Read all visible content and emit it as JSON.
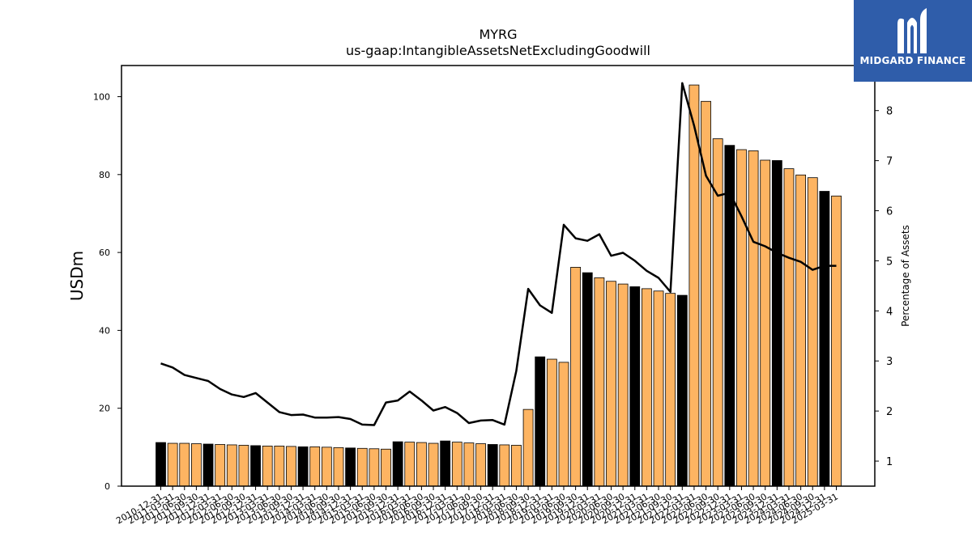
{
  "brand": {
    "name": "MIDGARD FINANCE",
    "bg_color": "#2f5daa",
    "icon": "midgard-logo-icon"
  },
  "chart_data": {
    "type": "bar",
    "title": "MYRG",
    "subtitle": "us-gaap:IntangibleAssetsNetExcludingGoodwill",
    "ylabel": "USDm",
    "y2label": "Percentage of Assets",
    "ylim": [
      0,
      108
    ],
    "y2lim": [
      0.5,
      8.9
    ],
    "yticks": [
      0,
      20,
      40,
      60,
      80,
      100
    ],
    "y2ticks": [
      1,
      2,
      3,
      4,
      5,
      6,
      7,
      8
    ],
    "colors": {
      "annual_bar": "#000000",
      "quarter_bar": "#fdb462",
      "line": "#000000"
    },
    "categories": [
      "2010-12-31",
      "2011-03-31",
      "2011-06-30",
      "2011-09-30",
      "2011-12-31",
      "2012-03-31",
      "2012-06-30",
      "2012-09-30",
      "2012-12-31",
      "2013-03-31",
      "2013-06-30",
      "2013-09-30",
      "2013-12-31",
      "2014-03-31",
      "2014-06-30",
      "2014-09-30",
      "2014-12-31",
      "2015-03-31",
      "2015-06-30",
      "2015-09-30",
      "2015-12-31",
      "2016-03-31",
      "2016-06-30",
      "2016-09-30",
      "2016-12-31",
      "2017-03-31",
      "2017-06-30",
      "2017-09-30",
      "2017-12-31",
      "2018-03-31",
      "2018-06-30",
      "2018-09-30",
      "2018-12-31",
      "2019-03-31",
      "2019-06-30",
      "2019-09-30",
      "2019-12-31",
      "2020-03-31",
      "2020-06-30",
      "2020-09-30",
      "2020-12-31",
      "2021-03-31",
      "2021-06-30",
      "2021-09-30",
      "2021-12-31",
      "2022-03-31",
      "2022-06-30",
      "2022-09-30",
      "2022-12-31",
      "2023-03-31",
      "2023-06-30",
      "2023-09-30",
      "2023-12-31",
      "2024-03-31",
      "2024-06-30",
      "2024-09-30",
      "2024-12-31",
      "2025-03-31"
    ],
    "annual": [
      true,
      false,
      false,
      false,
      true,
      false,
      false,
      false,
      true,
      false,
      false,
      false,
      true,
      false,
      false,
      false,
      true,
      false,
      false,
      false,
      true,
      false,
      false,
      false,
      true,
      false,
      false,
      false,
      true,
      false,
      false,
      false,
      true,
      false,
      false,
      false,
      true,
      false,
      false,
      false,
      true,
      false,
      false,
      false,
      true,
      false,
      false,
      false,
      true,
      false,
      false,
      false,
      true,
      false,
      false,
      false,
      true,
      false
    ],
    "series": [
      {
        "name": "USDm",
        "values": [
          11.2,
          11.0,
          11.0,
          10.9,
          10.8,
          10.7,
          10.6,
          10.5,
          10.4,
          10.3,
          10.3,
          10.2,
          10.1,
          10.1,
          10.0,
          9.9,
          9.8,
          9.7,
          9.6,
          9.5,
          11.4,
          11.3,
          11.2,
          11.0,
          11.6,
          11.3,
          11.1,
          10.9,
          10.7,
          10.6,
          10.5,
          19.7,
          33.2,
          32.6,
          31.8,
          56.2,
          54.8,
          53.5,
          52.6,
          51.9,
          51.2,
          50.7,
          50.1,
          49.5,
          49.0,
          103.0,
          98.8,
          89.2,
          87.5,
          86.4,
          86.1,
          83.7,
          83.6,
          81.5,
          79.9,
          79.2,
          75.7,
          74.5
        ]
      },
      {
        "name": "Percentage of Assets",
        "values": [
          2.95,
          2.87,
          2.72,
          2.66,
          2.6,
          2.44,
          2.33,
          2.28,
          2.36,
          2.17,
          1.98,
          1.92,
          1.93,
          1.87,
          1.87,
          1.88,
          1.84,
          1.73,
          1.72,
          2.17,
          2.21,
          2.39,
          2.21,
          2.01,
          2.08,
          1.96,
          1.76,
          1.81,
          1.82,
          1.73,
          2.8,
          4.44,
          4.11,
          3.96,
          5.72,
          5.45,
          5.4,
          5.53,
          5.1,
          5.16,
          5.0,
          4.8,
          4.66,
          4.38,
          8.55,
          7.7,
          6.7,
          6.3,
          6.36,
          5.89,
          5.38,
          5.29,
          5.16,
          5.06,
          4.98,
          4.82,
          4.9,
          4.9
        ]
      }
    ],
    "grid": false,
    "legend": "none"
  }
}
